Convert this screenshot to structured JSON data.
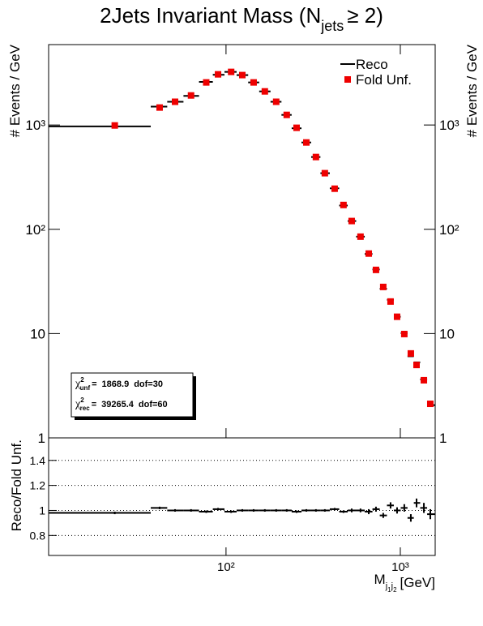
{
  "chart_data": [
    {
      "type": "hist",
      "title": "2Jets Invariant Mass (N",
      "title_sub": "jets",
      "title_end": "≥ 2)",
      "y_label": "# Events / GeV",
      "x": [
        23,
        41.6,
        51,
        63,
        77,
        90,
        107,
        124,
        144,
        167,
        194,
        223,
        254,
        289,
        328,
        369,
        420,
        472,
        526,
        591,
        659,
        725,
        798,
        879,
        958,
        1054,
        1149,
        1239,
        1365,
        1486
      ],
      "bins": [
        9.6,
        37,
        46,
        57,
        70,
        84,
        98,
        115,
        134,
        155,
        180,
        208,
        238,
        271,
        308,
        348,
        394,
        446,
        499,
        558,
        625,
        692,
        762,
        838,
        918,
        1005,
        1100,
        1195,
        1300,
        1425,
        1585
      ],
      "series": [
        {
          "name": "Reco",
          "color": "#000000",
          "values": [
            970,
            1500,
            1670,
            1900,
            2590,
            3030,
            3230,
            3010,
            2560,
            2100,
            1670,
            1250,
            930,
            680,
            493,
            345,
            247,
            169,
            120,
            85,
            58,
            41.2,
            26.9,
            21.1,
            14.5,
            10.1,
            6.06,
            5.3,
            3.64,
            2.06
          ]
        },
        {
          "name": "Fold Unf.",
          "color": "#ee0000",
          "values": [
            990,
            1470,
            1670,
            1920,
            2560,
            3060,
            3230,
            3010,
            2560,
            2100,
            1670,
            1250,
            940,
            680,
            493,
            345,
            245,
            171,
            120,
            85,
            58.5,
            40.8,
            28,
            20.3,
            14.5,
            9.9,
            6.45,
            5.0,
            3.57,
            2.12
          ]
        }
      ],
      "log_x": true,
      "log_y": true,
      "xlim": [
        9.6,
        1585
      ],
      "ylim": [
        1,
        5900
      ],
      "xticks": [
        100,
        1000
      ],
      "yticks": [
        1,
        10,
        {
          "value": 100,
          "label": "10²"
        },
        {
          "value": 1000,
          "label": "10³"
        }
      ],
      "legend": "top-right",
      "chi2": [
        {
          "symbol": "χ",
          "sup": "2",
          "sub": "unf",
          "sep": "=",
          "value": 1868.9,
          "dof": "dof=30"
        },
        {
          "symbol": "χ",
          "sup": "2",
          "sub": "rec",
          "sep": "=",
          "value": 39265.4,
          "dof": "dof=60"
        }
      ]
    },
    {
      "type": "ratio",
      "y_label": "Reco/Fold Unf.",
      "x_label": "M",
      "x_label_sub": [
        "j",
        "1",
        "j",
        "2"
      ],
      "x_label_unit": "[GeV]",
      "x": [
        23,
        41.6,
        51,
        63,
        77,
        90,
        107,
        124,
        144,
        167,
        194,
        223,
        254,
        289,
        328,
        369,
        420,
        472,
        526,
        591,
        659,
        725,
        798,
        879,
        958,
        1054,
        1149,
        1239,
        1365,
        1486
      ],
      "bins": [
        9.6,
        37,
        46,
        57,
        70,
        84,
        98,
        115,
        134,
        155,
        180,
        208,
        238,
        271,
        308,
        348,
        394,
        446,
        499,
        558,
        625,
        692,
        762,
        838,
        918,
        1005,
        1100,
        1195,
        1300,
        1425,
        1585
      ],
      "values": [
        0.98,
        1.02,
        1.0,
        1.0,
        0.99,
        1.01,
        0.99,
        1.0,
        1.0,
        1.0,
        1.0,
        1.0,
        0.99,
        1.0,
        1.0,
        1.0,
        1.01,
        0.99,
        1.0,
        1.0,
        0.99,
        1.01,
        0.96,
        1.04,
        1.0,
        1.02,
        0.94,
        1.06,
        1.02,
        0.97
      ],
      "errors": [
        0.01,
        0.01,
        0.01,
        0.01,
        0.01,
        0.01,
        0.01,
        0.01,
        0.01,
        0.01,
        0.01,
        0.01,
        0.01,
        0.01,
        0.01,
        0.01,
        0.01,
        0.01,
        0.015,
        0.015,
        0.02,
        0.02,
        0.02,
        0.025,
        0.025,
        0.03,
        0.03,
        0.035,
        0.04,
        0.04
      ],
      "color": "#000000",
      "log_x": true,
      "xlim": [
        9.6,
        1585
      ],
      "ylim": [
        0.64,
        1.58
      ],
      "xticks": [
        {
          "value": 100,
          "label": "10²"
        },
        {
          "value": 1000,
          "label": "10³"
        }
      ],
      "yticks": [
        0.8,
        1,
        1.2,
        1.4
      ],
      "grid": true
    }
  ]
}
